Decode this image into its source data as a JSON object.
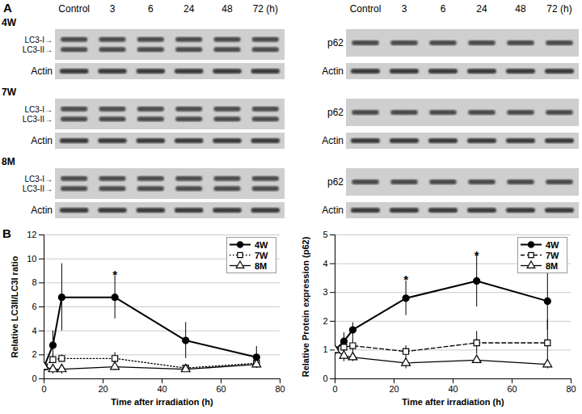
{
  "blot_panel": {
    "label": "A",
    "lanes": [
      "Control",
      "3",
      "6",
      "24",
      "48",
      "72"
    ],
    "lane_unit": "(h)",
    "groups": [
      "4W",
      "7W",
      "8M"
    ],
    "left_blot": {
      "bands": [
        "LC3-I→",
        "LC3-II→"
      ],
      "loading": "Actin"
    },
    "right_blot": {
      "bands": [
        "p62"
      ],
      "loading": "Actin"
    }
  },
  "chart_panel_label": "B",
  "chart_data": [
    {
      "type": "line",
      "xlabel": "Time after irradiation (h)",
      "ylabel": "Relative LC3II/LC3I ratio",
      "x": [
        0,
        3,
        6,
        24,
        48,
        72
      ],
      "xlim": [
        0,
        80
      ],
      "xticks": [
        0,
        20,
        40,
        60,
        80
      ],
      "ylim": [
        0,
        12
      ],
      "yticks": [
        0,
        2,
        4,
        6,
        8,
        10,
        12
      ],
      "grid": true,
      "legend": "top-right",
      "series": [
        {
          "name": "4W",
          "color": "#000000",
          "marker": "filled-circle",
          "line_style": "solid",
          "values": [
            1,
            2.8,
            6.8,
            6.8,
            3.2,
            1.8
          ],
          "errors": [
            0,
            1.2,
            2.8,
            1.8,
            1.5,
            0.9
          ]
        },
        {
          "name": "7W",
          "color": "#000000",
          "marker": "open-square",
          "line_style": "dotted",
          "values": [
            1,
            1.6,
            1.7,
            1.7,
            0.9,
            1.3
          ],
          "errors": [
            0,
            0.3,
            0.3,
            0.5,
            0.3,
            0.4
          ]
        },
        {
          "name": "8M",
          "color": "#000000",
          "marker": "open-triangle",
          "line_style": "solid",
          "values": [
            1,
            0.8,
            0.8,
            1.0,
            0.8,
            1.2
          ],
          "errors": [
            0,
            0.4,
            0.4,
            0.3,
            0.2,
            0.3
          ]
        }
      ],
      "annotations": [
        {
          "x": 24,
          "y": 8.9,
          "text": "*"
        }
      ]
    },
    {
      "type": "line",
      "xlabel": "Time after irradiation (h)",
      "ylabel": "Relative Protein expression (p62)",
      "x": [
        0,
        3,
        6,
        24,
        48,
        72
      ],
      "xlim": [
        0,
        80
      ],
      "xticks": [
        0,
        20,
        40,
        60,
        80
      ],
      "ylim": [
        0,
        5
      ],
      "yticks": [
        0,
        1,
        2,
        3,
        4,
        5
      ],
      "grid": true,
      "legend": "top-right",
      "series": [
        {
          "name": "4W",
          "color": "#000000",
          "marker": "filled-circle",
          "line_style": "solid",
          "values": [
            1,
            1.3,
            1.7,
            2.8,
            3.4,
            2.7
          ],
          "errors": [
            0,
            0.3,
            0.25,
            0.6,
            0.9,
            1.0
          ]
        },
        {
          "name": "7W",
          "color": "#000000",
          "marker": "open-square",
          "line_style": "dashed",
          "values": [
            1,
            1.1,
            1.15,
            0.95,
            1.25,
            1.25
          ],
          "errors": [
            0,
            0.2,
            0.3,
            0.2,
            0.4,
            0.8
          ]
        },
        {
          "name": "8M",
          "color": "#000000",
          "marker": "open-triangle",
          "line_style": "solid",
          "values": [
            1,
            0.8,
            0.75,
            0.55,
            0.65,
            0.5
          ],
          "errors": [
            0,
            0.2,
            0.15,
            0.2,
            0.1,
            0.15
          ]
        }
      ],
      "annotations": [
        {
          "x": 24,
          "y": 3.55,
          "text": "*"
        },
        {
          "x": 48,
          "y": 4.4,
          "text": "*"
        }
      ]
    }
  ]
}
